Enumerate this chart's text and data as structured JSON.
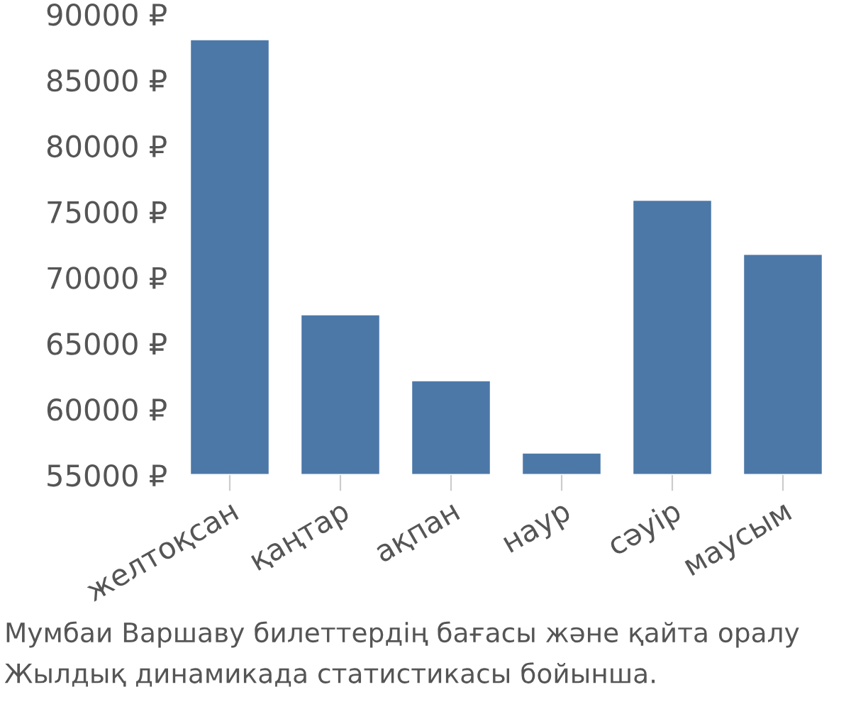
{
  "chart_data": {
    "type": "bar",
    "categories": [
      "желтоқсан",
      "қаңтар",
      "ақпан",
      "наур",
      "сәуір",
      "маусым"
    ],
    "values": [
      88100,
      67200,
      62200,
      56700,
      75900,
      71800
    ],
    "color": "#4c78a8",
    "ylim": [
      55000,
      90000
    ],
    "yticks": [
      {
        "value": 55000,
        "label": "55000 ₽"
      },
      {
        "value": 60000,
        "label": "60000 ₽"
      },
      {
        "value": 65000,
        "label": "65000 ₽"
      },
      {
        "value": 70000,
        "label": "70000 ₽"
      },
      {
        "value": 75000,
        "label": "75000 ₽"
      },
      {
        "value": 80000,
        "label": "80000 ₽"
      },
      {
        "value": 85000,
        "label": "85000 ₽"
      },
      {
        "value": 90000,
        "label": "90000 ₽"
      }
    ],
    "grid": false,
    "annotations": [
      "Мумбаи Варшаву билеттердің бағасы және қайта оралу",
      "Жылдық динамикада статистикасы бойынша."
    ]
  }
}
